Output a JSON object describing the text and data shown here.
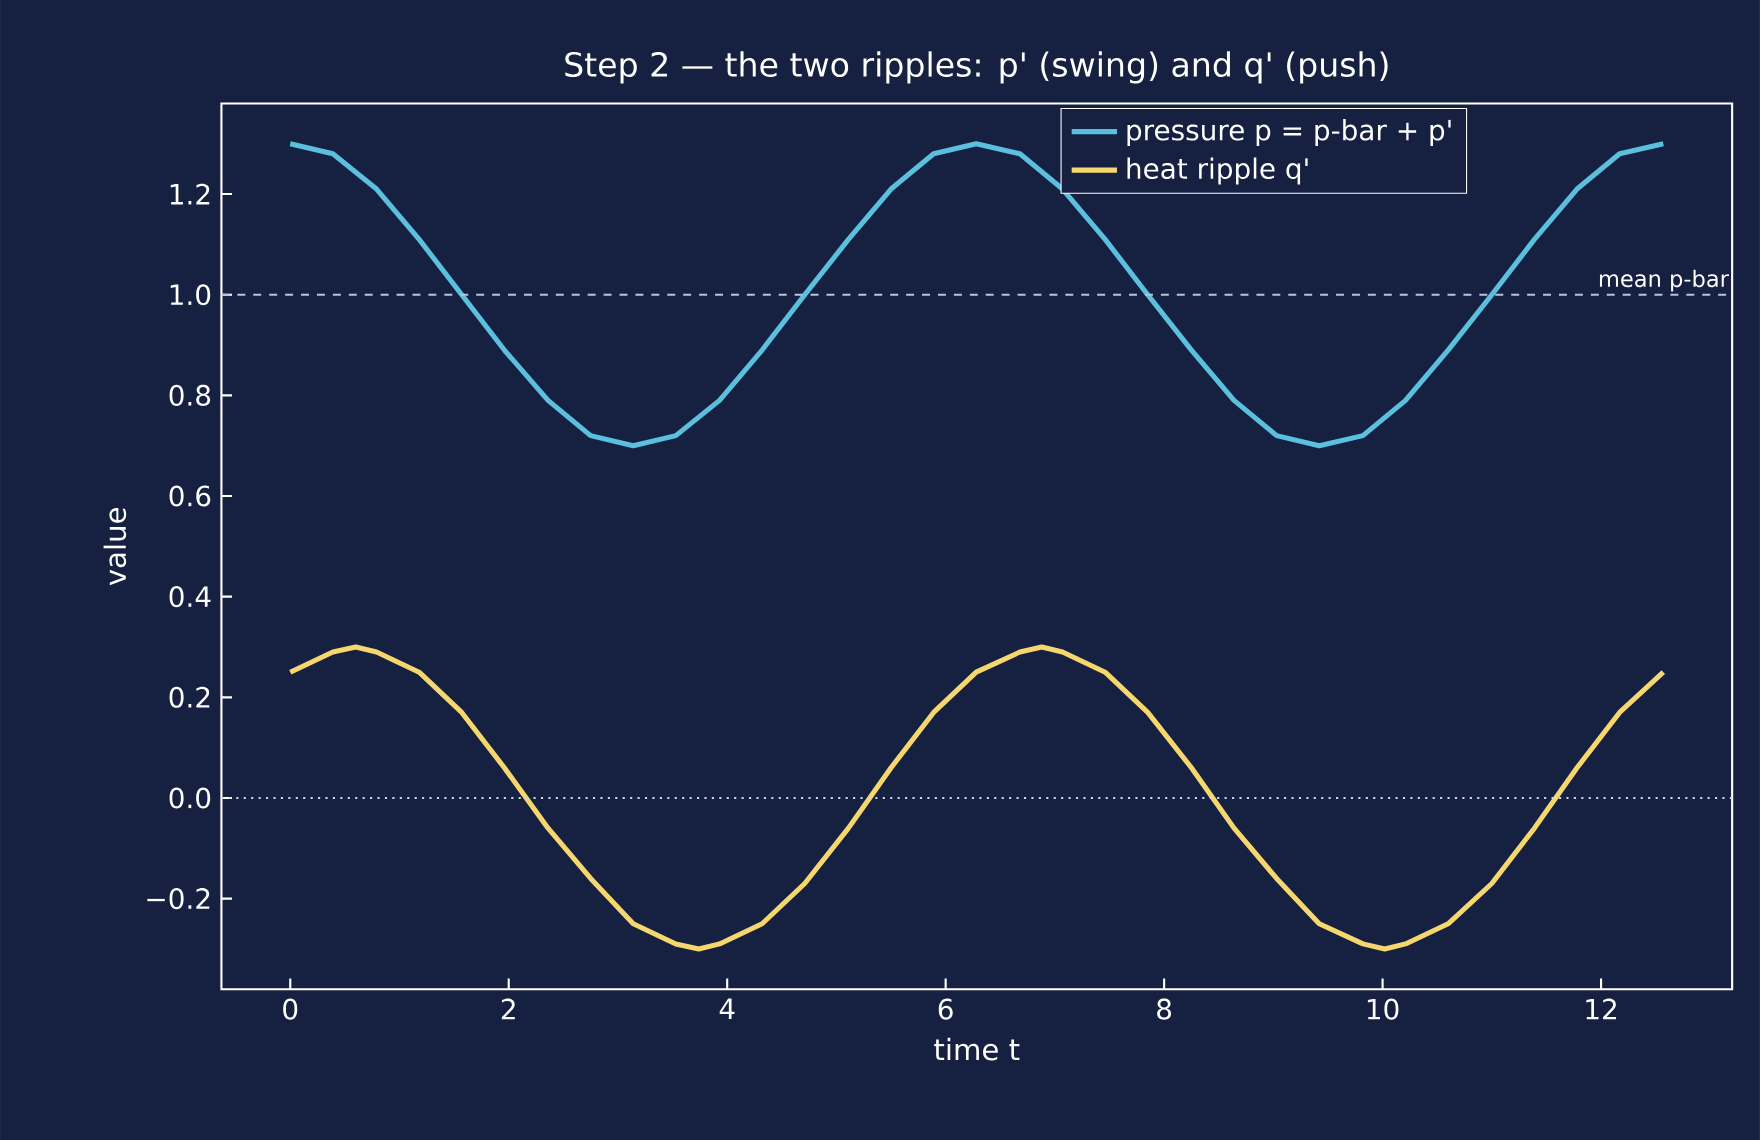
{
  "chart_data": {
    "type": "line",
    "title": "Step 2 — the two ripples: p' (swing) and q' (push)",
    "xlabel": "time t",
    "ylabel": "value",
    "xlim": [
      -0.63,
      13.2
    ],
    "ylim": [
      -0.38,
      1.38
    ],
    "xticks": [
      0,
      2,
      4,
      6,
      8,
      10,
      12
    ],
    "yticks": [
      {
        "value": -0.2,
        "label": "−0.2"
      },
      {
        "value": 0,
        "label": "0.0"
      },
      0.2,
      0.4,
      0.6,
      0.8,
      {
        "value": 1,
        "label": "1.0"
      },
      1.2
    ],
    "legend": "top",
    "grid": false,
    "marker": "none",
    "line_style": "solid",
    "ref_lines": [
      {
        "axis": "y",
        "value": 1.0,
        "label": "mean p-bar",
        "color": "#b8c4dc",
        "line_style": "dashed"
      },
      {
        "axis": "y",
        "value": 0.0,
        "color": "#d0d6e6",
        "line_style": "dotted"
      }
    ],
    "series": [
      {
        "name": "pressure p = p-bar + p'",
        "color": "#5bc0de",
        "x": [
          0,
          0.39,
          0.79,
          1.18,
          1.57,
          1.96,
          2.36,
          2.75,
          3.14,
          3.53,
          3.93,
          4.32,
          4.71,
          5.11,
          5.5,
          5.89,
          6.28,
          6.68,
          7.07,
          7.46,
          7.85,
          8.25,
          8.64,
          9.03,
          9.42,
          9.82,
          10.21,
          10.6,
          11.0,
          11.39,
          11.78,
          12.17,
          12.57
        ],
        "values": [
          1.3,
          1.28,
          1.21,
          1.11,
          1.0,
          0.89,
          0.79,
          0.72,
          0.7,
          0.72,
          0.79,
          0.89,
          1.0,
          1.11,
          1.21,
          1.28,
          1.3,
          1.28,
          1.21,
          1.11,
          1.0,
          0.89,
          0.79,
          0.72,
          0.7,
          0.72,
          0.79,
          0.89,
          1.0,
          1.11,
          1.21,
          1.28,
          1.3
        ]
      },
      {
        "name": "heat ripple q'",
        "color": "#f5d76e",
        "x": [
          0,
          0.39,
          0.6,
          0.79,
          1.18,
          1.57,
          1.96,
          2.36,
          2.75,
          3.14,
          3.53,
          3.74,
          3.93,
          4.32,
          4.71,
          5.11,
          5.5,
          5.89,
          6.28,
          6.68,
          6.88,
          7.07,
          7.46,
          7.85,
          8.25,
          8.64,
          9.03,
          9.42,
          9.82,
          10.02,
          10.21,
          10.6,
          11.0,
          11.39,
          11.78,
          12.17,
          12.57
        ],
        "values": [
          0.25,
          0.29,
          0.3,
          0.29,
          0.25,
          0.17,
          0.06,
          -0.06,
          -0.16,
          -0.25,
          -0.29,
          -0.3,
          -0.29,
          -0.25,
          -0.17,
          -0.06,
          0.06,
          0.17,
          0.25,
          0.29,
          0.3,
          0.29,
          0.25,
          0.17,
          0.06,
          -0.06,
          -0.16,
          -0.25,
          -0.29,
          -0.3,
          -0.29,
          -0.25,
          -0.17,
          -0.06,
          0.06,
          0.17,
          0.25
        ]
      }
    ]
  }
}
